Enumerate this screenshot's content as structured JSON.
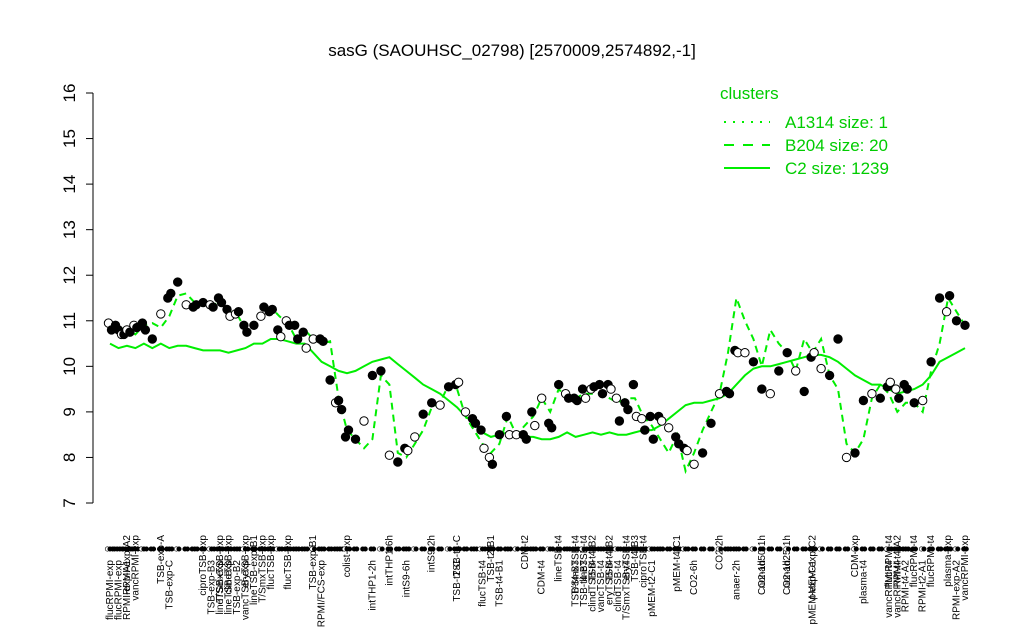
{
  "chart_data": {
    "type": "line",
    "title": "sasG (SAOUHSC_02798) [2570009,2574892,-1]",
    "ylim": [
      7,
      16
    ],
    "yticks": [
      7,
      8,
      9,
      10,
      11,
      12,
      13,
      14,
      15,
      16
    ],
    "grid": false,
    "legend": {
      "title": "clusters",
      "placement": "top-right",
      "entries": [
        {
          "label": "A1314 size: 1",
          "style": "dotted"
        },
        {
          "label": "B204 size: 20",
          "style": "dashed"
        },
        {
          "label": "C2 size: 1239",
          "style": "solid"
        }
      ]
    },
    "colors": {
      "series": "#00ee00",
      "legend": "#00cc00",
      "points": "#000000"
    },
    "top_labels": [
      {
        "i": 2,
        "text": "RPMI-exp-A2"
      },
      {
        "i": 3,
        "text": "vancRPMI-exp"
      },
      {
        "i": 6,
        "text": "TSB-exp-A"
      },
      {
        "i": 11,
        "text": "ciproTSB-exp"
      },
      {
        "i": 13,
        "text": "T/SmxTSB-exp"
      },
      {
        "i": 14,
        "text": "clindTSB-exp"
      },
      {
        "i": 16,
        "text": "eryTSB-exp"
      },
      {
        "i": 17,
        "text": "lineTSB-exp-B1"
      },
      {
        "i": 18,
        "text": "T/SmxTSB-exp"
      },
      {
        "i": 19,
        "text": "flucTSB-exp"
      },
      {
        "i": 21,
        "text": "flucTSB-exp"
      },
      {
        "i": 24,
        "text": "TSB-exp-B1"
      },
      {
        "i": 28,
        "text": "colist-exp"
      },
      {
        "i": 33,
        "text": "intTHP1-6h"
      },
      {
        "i": 38,
        "text": "intS9-2h"
      },
      {
        "i": 41,
        "text": "TSB-t4-C"
      },
      {
        "i": 45,
        "text": "TSB-t2-B1"
      },
      {
        "i": 49,
        "text": "CDM-t2"
      },
      {
        "i": 53,
        "text": "lineTSB-t4"
      },
      {
        "i": 55,
        "text": "T/SmxTSB-t4"
      },
      {
        "i": 56,
        "text": "lineTSB-t4"
      },
      {
        "i": 57,
        "text": "TSB-t4-B2"
      },
      {
        "i": 59,
        "text": "TSB-t4-B2"
      },
      {
        "i": 61,
        "text": "eryTSB-t4"
      },
      {
        "i": 62,
        "text": "TSB-t4-B3"
      },
      {
        "i": 63,
        "text": "ciproTSB-t4"
      },
      {
        "i": 67,
        "text": "pMEM-t4-C1"
      },
      {
        "i": 72,
        "text": "CO2-2h"
      },
      {
        "i": 77,
        "text": "nonad50-1h"
      },
      {
        "i": 80,
        "text": "nonad25-1h"
      },
      {
        "i": 83,
        "text": "pMEM-exp-C2"
      },
      {
        "i": 88,
        "text": "CDM-exp"
      },
      {
        "i": 92,
        "text": "flucRPMI-t4"
      },
      {
        "i": 93,
        "text": "RPMI-t4-A2"
      },
      {
        "i": 95,
        "text": "flucRPMI-t4"
      },
      {
        "i": 97,
        "text": "flucRPMI-t4"
      },
      {
        "i": 99,
        "text": "plasma-exp"
      },
      {
        "i": 101,
        "text": "vancRPMI-exp"
      }
    ],
    "bottom_labels": [
      {
        "i": 0,
        "text": "flucRPMI-exp"
      },
      {
        "i": 1,
        "text": "flucRPMI-exp"
      },
      {
        "i": 2,
        "text": "RPMI-exp-A1"
      },
      {
        "i": 7,
        "text": "TSB-exp-C"
      },
      {
        "i": 12,
        "text": "TSB-exp-B3"
      },
      {
        "i": 13,
        "text": "lineTSB-exp"
      },
      {
        "i": 14,
        "text": "lineTSB-exp"
      },
      {
        "i": 15,
        "text": "TSB-exp-B2"
      },
      {
        "i": 16,
        "text": "vancTSB-exp"
      },
      {
        "i": 25,
        "text": "RPMI/FCS-exp"
      },
      {
        "i": 31,
        "text": "intTHP1-2h"
      },
      {
        "i": 35,
        "text": "intS9-6h"
      },
      {
        "i": 41,
        "text": "TSB-t2-C"
      },
      {
        "i": 44,
        "text": "flucTSB-t4"
      },
      {
        "i": 46,
        "text": "TSB-t4-B1"
      },
      {
        "i": 51,
        "text": "CDM-t4"
      },
      {
        "i": 55,
        "text": "TSB-t4-B3"
      },
      {
        "i": 56,
        "text": "TSB-t4-B3"
      },
      {
        "i": 57,
        "text": "clindTSB-t4"
      },
      {
        "i": 58,
        "text": "vancTSB-t4"
      },
      {
        "i": 59,
        "text": "eryTSB-t4"
      },
      {
        "i": 60,
        "text": "clindTSB-t4"
      },
      {
        "i": 61,
        "text": "T/SmxTSB-t4"
      },
      {
        "i": 64,
        "text": "pMEM-t2-C1"
      },
      {
        "i": 69,
        "text": "CO2-6h"
      },
      {
        "i": 74,
        "text": "anaer-2h"
      },
      {
        "i": 77,
        "text": "CO2-1h"
      },
      {
        "i": 80,
        "text": "CO2-1h"
      },
      {
        "i": 83,
        "text": "pMEM-exp-C1"
      },
      {
        "i": 89,
        "text": "plasma-t4"
      },
      {
        "i": 92,
        "text": "vancRPMI-t4"
      },
      {
        "i": 93,
        "text": "vancRPMI-t4"
      },
      {
        "i": 94,
        "text": "RPMI-t4-A2"
      },
      {
        "i": 96,
        "text": "RPMI-t2-A1"
      },
      {
        "i": 100,
        "text": "RPMI-exp-A2"
      }
    ],
    "series": [
      {
        "style": "solid",
        "values": [
          10.5,
          10.4,
          10.45,
          10.4,
          10.5,
          10.4,
          10.5,
          10.4,
          10.45,
          10.45,
          10.4,
          10.35,
          10.35,
          10.35,
          10.3,
          10.35,
          10.4,
          10.5,
          10.5,
          10.6,
          10.6,
          10.55,
          10.5,
          10.5,
          10.3,
          10.1,
          10.0,
          9.9,
          9.85,
          9.9,
          10.0,
          10.1,
          10.15,
          10.2,
          10.05,
          9.9,
          9.75,
          9.6,
          9.5,
          9.4,
          9.25,
          9.1,
          8.9,
          8.75,
          8.55,
          8.45,
          8.5,
          8.55,
          8.5,
          8.45,
          8.45,
          8.4,
          8.4,
          8.45,
          8.55,
          8.45,
          8.5,
          8.55,
          8.5,
          8.55,
          8.5,
          8.5,
          8.55,
          8.6,
          8.6,
          8.7,
          8.85,
          9.0,
          9.15,
          9.2,
          9.2,
          9.25,
          9.3,
          9.4,
          9.6,
          9.8,
          9.95,
          10.0,
          10.0,
          10.05,
          10.1,
          10.15,
          10.2,
          10.25,
          10.25,
          10.2,
          10.1,
          9.95,
          9.8,
          9.7,
          9.6,
          9.6,
          9.5,
          9.4,
          9.45,
          9.5,
          9.6,
          9.8,
          10.1,
          10.2,
          10.3,
          10.4
        ]
      },
      {
        "style": "dashed",
        "values": [
          10.9,
          10.85,
          10.8,
          10.7,
          10.9,
          10.95,
          10.85,
          11.1,
          11.55,
          11.6,
          11.4,
          11.35,
          11.3,
          11.45,
          11.2,
          11.15,
          10.8,
          10.85,
          11.1,
          11.3,
          11.1,
          10.95,
          10.6,
          10.8,
          10.6,
          10.5,
          10.55,
          9.3,
          8.6,
          8.4,
          8.2,
          8.4,
          9.8,
          9.6,
          8.1,
          8.0,
          8.3,
          8.6,
          9.1,
          9.2,
          9.6,
          9.5,
          8.9,
          8.6,
          8.3,
          8.1,
          8.3,
          8.9,
          8.5,
          8.7,
          8.9,
          9.3,
          9.0,
          9.5,
          9.3,
          9.3,
          9.4,
          9.4,
          9.4,
          9.3,
          9.2,
          9.3,
          9.3,
          8.9,
          8.7,
          8.4,
          8.1,
          8.5,
          7.7,
          8.1,
          8.6,
          9.0,
          9.4,
          10.3,
          11.5,
          11.0,
          10.6,
          10.0,
          10.8,
          10.5,
          10.3,
          9.9,
          10.6,
          10.3,
          10.6,
          9.8,
          9.5,
          8.3,
          8.1,
          8.4,
          9.3,
          9.6,
          9.4,
          9.0,
          9.2,
          9.2,
          9.0,
          9.9,
          10.5,
          11.5,
          11.2,
          10.9
        ]
      }
    ],
    "points": [
      [
        10.95,
        10.8
      ],
      [
        10.9,
        10.8,
        10.7
      ],
      [
        10.7,
        10.8,
        10.75
      ],
      [
        10.9,
        10.85
      ],
      [
        10.95,
        10.8
      ],
      [
        10.6
      ],
      [
        11.15
      ],
      [
        11.5,
        11.6
      ],
      [
        11.85
      ],
      [
        11.35
      ],
      [
        11.3,
        11.35
      ],
      [
        11.4
      ],
      [
        11.35,
        11.3
      ],
      [
        11.5,
        11.4
      ],
      [
        11.25,
        11.1
      ],
      [
        11.15,
        11.2
      ],
      [
        10.9,
        10.75
      ],
      [
        10.9
      ],
      [
        11.1,
        11.3
      ],
      [
        11.2,
        11.25
      ],
      [
        10.8,
        10.65
      ],
      [
        11.0,
        10.9
      ],
      [
        10.9,
        10.6
      ],
      [
        10.75,
        10.4
      ],
      [
        10.6
      ],
      [
        10.6,
        10.55
      ],
      [
        9.7
      ],
      [
        9.2,
        9.25,
        9.05
      ],
      [
        8.45,
        8.6
      ],
      [
        8.4
      ],
      [
        8.8
      ],
      [
        9.8
      ],
      [
        9.9
      ],
      [
        8.05
      ],
      [
        7.9
      ],
      [
        8.2,
        8.15
      ],
      [
        8.45
      ],
      [
        8.95
      ],
      [
        9.2
      ],
      [
        9.15
      ],
      [
        9.55
      ],
      [
        9.6,
        9.65
      ],
      [
        9.0
      ],
      [
        8.85,
        8.75
      ],
      [
        8.6,
        8.2
      ],
      [
        8.0,
        7.85
      ],
      [
        8.5
      ],
      [
        8.9,
        8.5
      ],
      [
        8.5
      ],
      [
        8.5,
        8.4
      ],
      [
        9.0,
        8.7
      ],
      [
        9.3
      ],
      [
        8.75,
        8.65
      ],
      [
        9.6
      ],
      [
        9.4,
        9.3
      ],
      [
        9.3,
        9.25
      ],
      [
        9.5,
        9.3
      ],
      [
        9.5,
        9.55
      ],
      [
        9.6,
        9.4
      ],
      [
        9.6,
        9.5
      ],
      [
        9.3,
        8.8
      ],
      [
        9.2,
        9.05
      ],
      [
        9.6,
        8.9
      ],
      [
        8.85,
        8.6
      ],
      [
        8.9,
        8.4
      ],
      [
        8.9,
        8.8
      ],
      [
        8.65
      ],
      [
        8.45,
        8.3
      ],
      [
        8.2,
        8.15
      ],
      [
        7.85
      ],
      [
        8.1
      ],
      [
        8.75
      ],
      [
        9.4
      ],
      [
        9.45,
        9.4
      ],
      [
        10.35,
        10.3
      ],
      [
        10.3
      ],
      [
        10.1
      ],
      [
        9.5
      ],
      [
        9.4
      ],
      [
        9.9
      ],
      [
        10.3
      ],
      [
        9.9
      ],
      [
        9.45
      ],
      [
        10.2,
        10.3
      ],
      [
        9.95
      ],
      [
        9.8
      ],
      [
        10.6
      ],
      [
        8.0
      ],
      [
        8.1
      ],
      [
        9.25
      ],
      [
        9.4
      ],
      [
        9.3
      ],
      [
        9.55,
        9.65
      ],
      [
        9.5,
        9.3
      ],
      [
        9.6,
        9.5
      ],
      [
        9.2
      ],
      [
        9.25
      ],
      [
        10.1
      ],
      [
        11.5
      ],
      [
        11.2,
        11.55
      ],
      [
        11.0
      ],
      [
        10.9
      ]
    ]
  }
}
